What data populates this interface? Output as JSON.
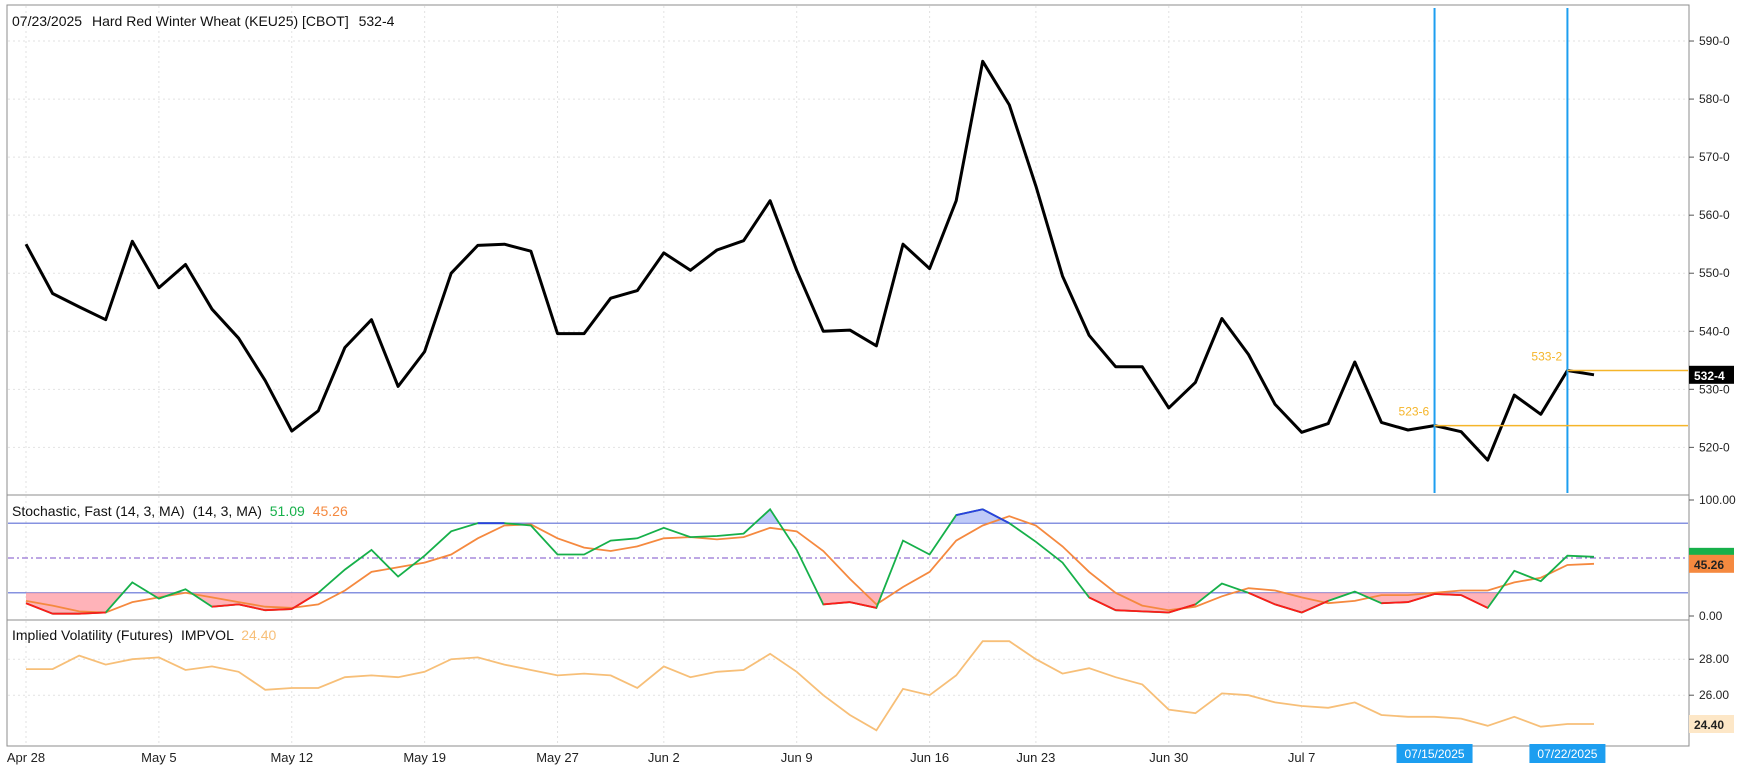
{
  "colors": {
    "price_line": "#000000",
    "fast_k": "#16b04a",
    "slow_d": "#f5893f",
    "oversold_fill": "#ff9aa2",
    "oversold_line": "#ff1a1a",
    "overbought_fill": "#a9b8f5",
    "overbought_line": "#2b3fe0",
    "band_line": "#5f6fd6",
    "midline": "#7b4fc9",
    "impvol": "#f7bf78",
    "marker_vline": "#1d9ef0",
    "level_line": "#f5b52a",
    "level_text": "#f5b52a",
    "last_price_bg": "#000000",
    "grid": "#e2e2e2",
    "panel_border": "#8d8d8d"
  },
  "price_panel": {
    "header": {
      "date": "07/23/2025",
      "instrument": "Hard Red Winter Wheat (KEU25) [CBOT]",
      "last": "532-4"
    }
  },
  "stoch_panel": {
    "header": {
      "name": "Stochastic, Fast (14, 3, MA)",
      "params": "(14, 3, MA)",
      "k_value": "51.09",
      "d_value": "45.26"
    }
  },
  "impvol_panel": {
    "header": {
      "name": "Implied Volatility (Futures)",
      "series": "IMPVOL",
      "value": "24.40"
    }
  },
  "chart_data": [
    {
      "type": "line",
      "title": "07/23/2025 Hard Red Winter Wheat (KEU25) [CBOT] 532-4",
      "x_labels": [
        "Apr 28",
        "May 5",
        "May 12",
        "May 19",
        "May 27",
        "Jun 2",
        "Jun 9",
        "Jun 16",
        "Jun 23",
        "Jun 30",
        "Jul 7",
        "07/15/2025",
        "07/22/2025"
      ],
      "y_range": [
        513,
        595
      ],
      "y_ticks": [
        "520-0",
        "530-0",
        "540-0",
        "550-0",
        "560-0",
        "570-0",
        "580-0",
        "590-0"
      ],
      "grid": true,
      "series": [
        {
          "values": [
            555,
            546.5,
            544.2,
            542,
            555.5,
            547.5,
            551.5,
            543.8,
            538.8,
            531.5,
            522.8,
            526.3,
            537.2,
            542,
            530.5,
            536.5,
            550,
            554.8,
            555,
            553.8,
            539.6,
            539.6,
            545.7,
            547,
            553.5,
            550.5,
            554,
            555.6,
            562.5,
            550.5,
            540,
            540.2,
            537.5,
            555,
            550.8,
            562.5,
            586.5,
            579,
            565,
            549.5,
            539.3,
            533.9,
            533.9,
            526.8,
            531.2,
            542.2,
            536,
            527.4,
            522.6,
            524.1,
            534.7,
            524.3,
            523,
            523.75,
            522.7,
            517.8,
            529,
            525.7,
            533.25,
            532.5
          ]
        }
      ],
      "annotations": [
        {
          "label": "523-6",
          "value": 523.75,
          "date": "07/15/2025"
        },
        {
          "label": "533-2",
          "value": 533.25,
          "date": "07/22/2025"
        },
        {
          "label": "532-4",
          "value": 532.5,
          "note": "last"
        }
      ],
      "vertical_markers": [
        "07/15/2025",
        "07/22/2025"
      ]
    },
    {
      "type": "line",
      "title": "Stochastic, Fast (14, 3, MA) (14, 3, MA)",
      "y_range": [
        0,
        100
      ],
      "y_ticks": [
        "0.00",
        "100.00"
      ],
      "bands": [
        20,
        80
      ],
      "midline": 50,
      "series": [
        {
          "name": "51.09",
          "values": [
            11,
            2,
            2,
            3,
            29,
            15,
            23,
            8,
            10,
            5,
            6,
            20,
            40,
            57,
            34,
            52,
            73,
            80,
            80,
            78,
            53,
            53,
            65,
            67,
            76,
            68,
            69,
            71,
            92,
            57,
            10,
            12,
            7,
            65,
            53,
            87,
            92,
            80,
            64,
            46,
            16,
            5,
            4,
            3,
            10,
            28,
            20,
            10,
            3,
            13,
            21,
            11,
            12,
            19,
            18,
            7,
            39,
            30,
            52,
            51
          ]
        },
        {
          "name": "45.26",
          "values": [
            13,
            9,
            4,
            3,
            12,
            16,
            20,
            16,
            12,
            8,
            7,
            10,
            22,
            38,
            42,
            46,
            53,
            67,
            78,
            79,
            67,
            59,
            56,
            60,
            67,
            68,
            66,
            68,
            76,
            73,
            56,
            32,
            10,
            25,
            38,
            65,
            78,
            86,
            78,
            60,
            38,
            20,
            9,
            5,
            8,
            17,
            24,
            22,
            16,
            11,
            13,
            18,
            18,
            20,
            22,
            22,
            29,
            33,
            44,
            45
          ]
        }
      ]
    },
    {
      "type": "line",
      "title": "Implied Volatility (Futures) IMPVOL 24.40",
      "y_range": [
        23.4,
        29.9
      ],
      "y_ticks": [
        "26.00",
        "28.00"
      ],
      "series": [
        {
          "name": "IMPVOL",
          "values": [
            27.45,
            27.45,
            28.2,
            27.7,
            28.0,
            28.1,
            27.4,
            27.6,
            27.3,
            26.3,
            26.4,
            26.4,
            27.0,
            27.1,
            27.0,
            27.3,
            28.0,
            28.1,
            27.7,
            27.4,
            27.1,
            27.2,
            27.1,
            26.4,
            27.6,
            27.0,
            27.3,
            27.4,
            28.3,
            27.3,
            26.0,
            24.9,
            24.05,
            26.35,
            26.0,
            27.1,
            29.0,
            29.0,
            28.0,
            27.2,
            27.5,
            27.0,
            26.6,
            25.2,
            25.0,
            26.1,
            26.0,
            25.6,
            25.4,
            25.3,
            25.6,
            24.9,
            24.8,
            24.8,
            24.7,
            24.3,
            24.8,
            24.25,
            24.4,
            24.4
          ]
        }
      ]
    }
  ]
}
